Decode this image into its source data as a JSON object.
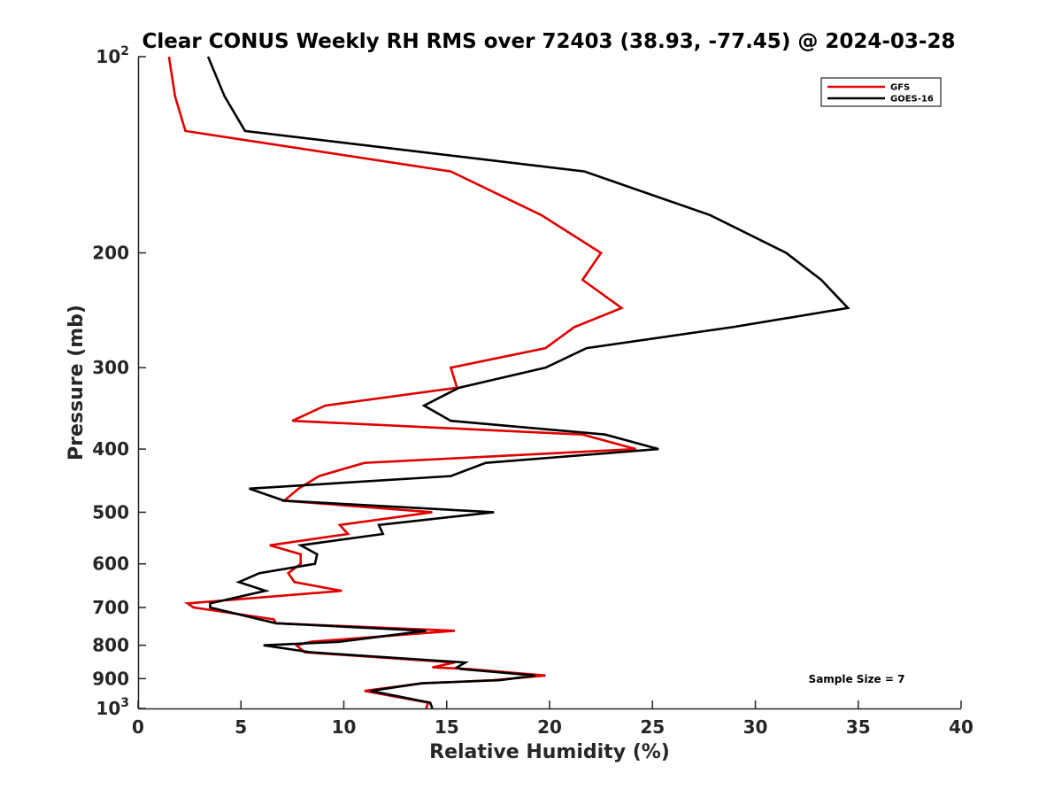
{
  "chart_data": {
    "type": "line",
    "title": "Clear CONUS Weekly RH RMS over 72403 (38.93, -77.45) @ 2024-03-28",
    "xlabel": "Relative Humidity (%)",
    "ylabel": "Pressure (mb)",
    "xlim": [
      0,
      40
    ],
    "ylim": [
      100,
      1000
    ],
    "yscale": "log",
    "y_reversed": true,
    "grid": false,
    "legend_position": "top-right",
    "x_ticks": [
      0,
      5,
      10,
      15,
      20,
      25,
      30,
      35,
      40
    ],
    "x_tick_labels": [
      "0",
      "5",
      "10",
      "15",
      "20",
      "25",
      "30",
      "35",
      "40"
    ],
    "y_ticks": [
      100,
      200,
      300,
      400,
      500,
      600,
      700,
      800,
      900,
      1000
    ],
    "y_tick_labels": [
      {
        "base": "10",
        "exp": "2"
      },
      {
        "base": "200",
        "exp": ""
      },
      {
        "base": "300",
        "exp": ""
      },
      {
        "base": "400",
        "exp": ""
      },
      {
        "base": "500",
        "exp": ""
      },
      {
        "base": "600",
        "exp": ""
      },
      {
        "base": "700",
        "exp": ""
      },
      {
        "base": "800",
        "exp": ""
      },
      {
        "base": "900",
        "exp": ""
      },
      {
        "base": "10",
        "exp": "3"
      }
    ],
    "annotation": "Sample Size = 7",
    "series": [
      {
        "name": "GFS",
        "color": "#e00000",
        "points": [
          [
            1.5,
            100
          ],
          [
            1.8,
            115
          ],
          [
            2.3,
            130
          ],
          [
            15.2,
            150
          ],
          [
            19.6,
            175
          ],
          [
            22.5,
            200
          ],
          [
            21.6,
            220
          ],
          [
            23.5,
            243
          ],
          [
            21.2,
            260
          ],
          [
            19.8,
            280
          ],
          [
            15.2,
            300
          ],
          [
            15.5,
            322
          ],
          [
            9.1,
            343
          ],
          [
            7.5,
            362
          ],
          [
            21.6,
            380
          ],
          [
            24.2,
            400
          ],
          [
            11.0,
            420
          ],
          [
            8.8,
            440
          ],
          [
            7.8,
            460
          ],
          [
            7.1,
            480
          ],
          [
            14.3,
            500
          ],
          [
            9.8,
            523
          ],
          [
            10.2,
            540
          ],
          [
            6.4,
            562
          ],
          [
            7.9,
            580
          ],
          [
            7.9,
            600
          ],
          [
            7.3,
            620
          ],
          [
            7.6,
            640
          ],
          [
            9.9,
            660
          ],
          [
            2.4,
            690
          ],
          [
            2.7,
            700
          ],
          [
            6.6,
            730
          ],
          [
            6.7,
            740
          ],
          [
            15.4,
            760
          ],
          [
            8.4,
            790
          ],
          [
            7.7,
            800
          ],
          [
            8.1,
            820
          ],
          [
            15.4,
            850
          ],
          [
            14.3,
            865
          ],
          [
            16.1,
            870
          ],
          [
            19.8,
            890
          ],
          [
            17.3,
            905
          ],
          [
            13.8,
            915
          ],
          [
            11.0,
            940
          ],
          [
            14.1,
            980
          ],
          [
            14.0,
            1000
          ]
        ]
      },
      {
        "name": "GOES-16",
        "color": "#000000",
        "points": [
          [
            3.4,
            100
          ],
          [
            4.2,
            115
          ],
          [
            5.2,
            130
          ],
          [
            21.7,
            150
          ],
          [
            27.8,
            175
          ],
          [
            31.5,
            200
          ],
          [
            33.2,
            220
          ],
          [
            34.5,
            243
          ],
          [
            28.9,
            260
          ],
          [
            21.8,
            280
          ],
          [
            19.8,
            300
          ],
          [
            15.6,
            322
          ],
          [
            13.9,
            343
          ],
          [
            15.2,
            362
          ],
          [
            22.7,
            380
          ],
          [
            25.3,
            400
          ],
          [
            16.9,
            420
          ],
          [
            15.2,
            440
          ],
          [
            5.4,
            460
          ],
          [
            7.1,
            480
          ],
          [
            17.3,
            500
          ],
          [
            11.7,
            523
          ],
          [
            11.9,
            540
          ],
          [
            7.9,
            562
          ],
          [
            8.7,
            580
          ],
          [
            8.6,
            600
          ],
          [
            5.9,
            620
          ],
          [
            4.9,
            640
          ],
          [
            6.2,
            660
          ],
          [
            3.5,
            690
          ],
          [
            3.5,
            700
          ],
          [
            5.9,
            730
          ],
          [
            6.7,
            740
          ],
          [
            14.0,
            760
          ],
          [
            9.8,
            790
          ],
          [
            6.1,
            800
          ],
          [
            8.4,
            820
          ],
          [
            15.9,
            850
          ],
          [
            15.5,
            865
          ],
          [
            15.7,
            870
          ],
          [
            19.3,
            890
          ],
          [
            17.6,
            905
          ],
          [
            13.8,
            915
          ],
          [
            11.3,
            940
          ],
          [
            14.2,
            980
          ],
          [
            14.3,
            1000
          ]
        ]
      }
    ]
  }
}
